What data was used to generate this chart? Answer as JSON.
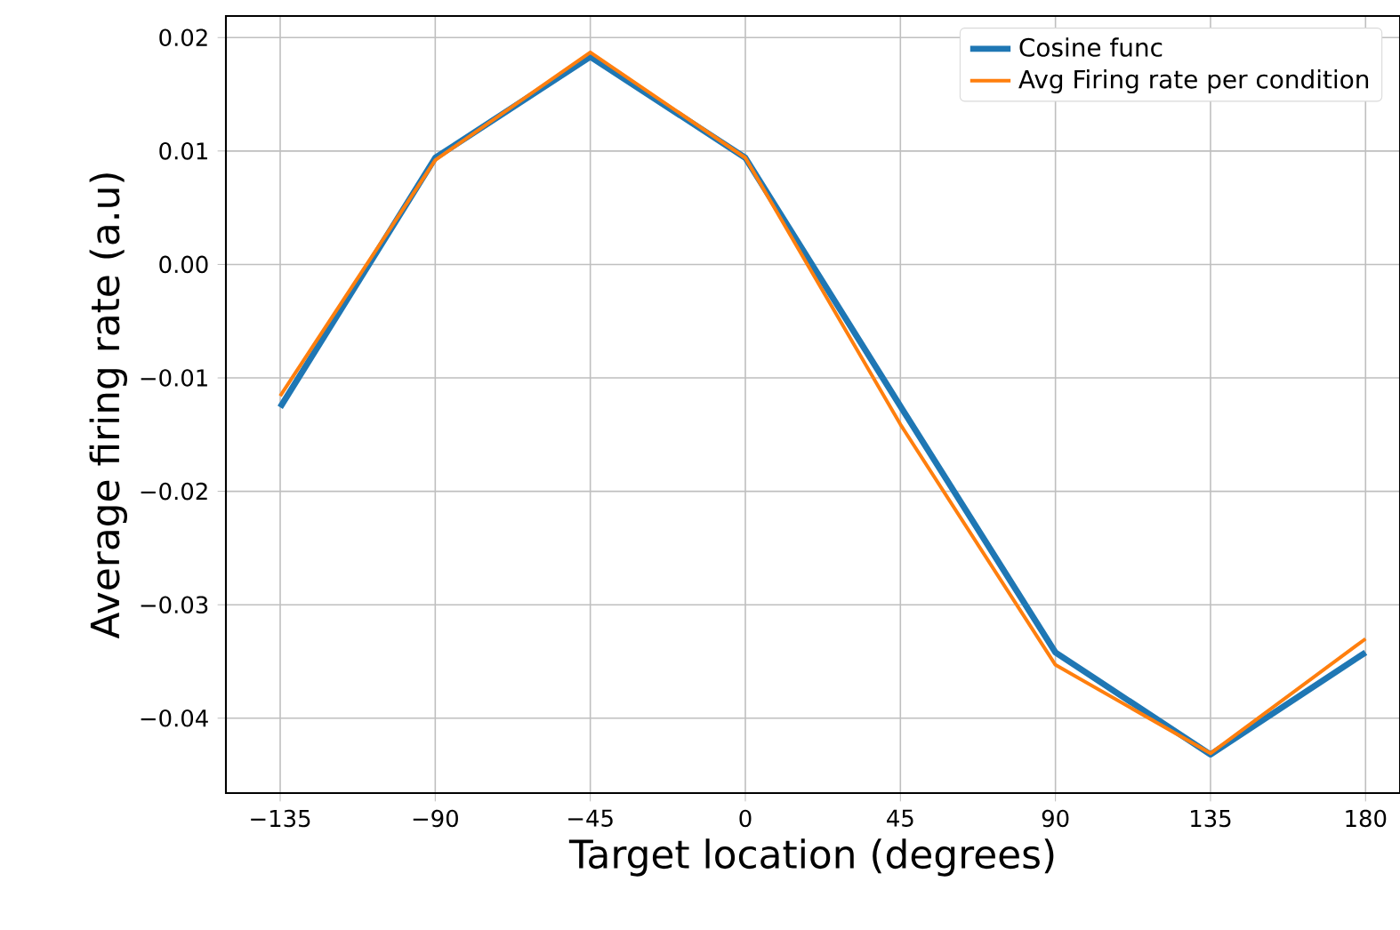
{
  "chart_data": {
    "type": "line",
    "xlabel": "Target location (degrees)",
    "ylabel": "Average firing rate (a.u)",
    "x": [
      -135,
      -90,
      -45,
      0,
      45,
      90,
      135,
      180
    ],
    "series": [
      {
        "name": "Cosine func",
        "color": "#1f77b4",
        "values": [
          -0.0126,
          0.0094,
          0.0183,
          0.0094,
          -0.0125,
          -0.0342,
          -0.0432,
          -0.0342
        ]
      },
      {
        "name": "Avg Firing rate per condition",
        "color": "#ff7f0e",
        "values": [
          -0.0116,
          0.0092,
          0.0187,
          0.0094,
          -0.0141,
          -0.0353,
          -0.0431,
          -0.033
        ]
      }
    ],
    "xlim": [
      -150.75,
      190
    ],
    "ylim": [
      -0.0466,
      0.0219
    ],
    "xticks": [
      {
        "value": -135,
        "label": "−135"
      },
      {
        "value": -90,
        "label": "−90"
      },
      {
        "value": -45,
        "label": "−45"
      },
      0,
      45,
      90,
      135,
      180
    ],
    "yticks": [
      {
        "value": -0.04,
        "label": "−0.04"
      },
      {
        "value": -0.03,
        "label": "−0.03"
      },
      {
        "value": -0.02,
        "label": "−0.02"
      },
      {
        "value": -0.01,
        "label": "−0.01"
      },
      {
        "value": 0,
        "label": "0.00"
      },
      0.01,
      0.02
    ],
    "grid": true,
    "legend": "top right",
    "marker": "none",
    "line_style": "solid"
  }
}
